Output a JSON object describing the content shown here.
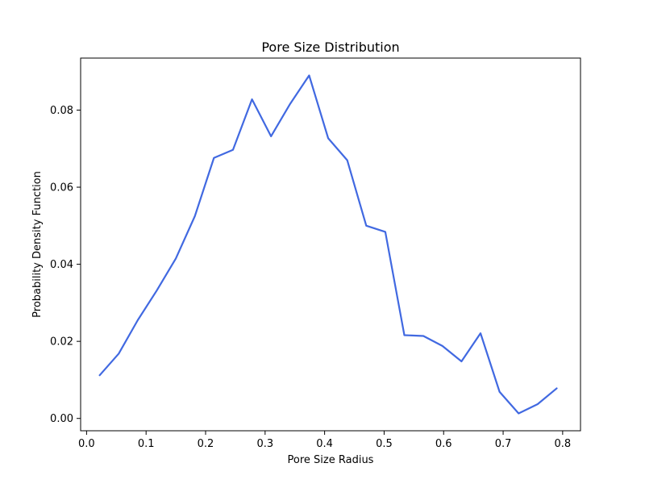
{
  "chart_data": {
    "type": "line",
    "title": "Pore Size Distribution",
    "xlabel": "Pore Size Radius",
    "ylabel": "Probability Density Function",
    "xlim": [
      -0.01,
      0.83
    ],
    "ylim": [
      -0.0032,
      0.0935
    ],
    "grid": false,
    "line_color": "#4169E1",
    "x_ticks": [
      0.0,
      0.1,
      0.2,
      0.3,
      0.4,
      0.5,
      0.6,
      0.7,
      0.8
    ],
    "x_tick_labels": [
      "0.0",
      "0.1",
      "0.2",
      "0.3",
      "0.4",
      "0.5",
      "0.6",
      "0.7",
      "0.8"
    ],
    "y_ticks": [
      0.0,
      0.02,
      0.04,
      0.06,
      0.08
    ],
    "y_tick_labels": [
      "0.00",
      "0.02",
      "0.04",
      "0.06",
      "0.08"
    ],
    "series": [
      {
        "x": [
          0.022,
          0.054,
          0.086,
          0.118,
          0.15,
          0.182,
          0.214,
          0.246,
          0.278,
          0.31,
          0.342,
          0.374,
          0.406,
          0.438,
          0.47,
          0.502,
          0.534,
          0.566,
          0.598,
          0.63,
          0.662,
          0.694,
          0.726,
          0.758,
          0.79
        ],
        "y": [
          0.0112,
          0.0168,
          0.0255,
          0.0332,
          0.0415,
          0.0525,
          0.0676,
          0.0697,
          0.0828,
          0.0732,
          0.0816,
          0.089,
          0.0727,
          0.067,
          0.05,
          0.0484,
          0.0216,
          0.0214,
          0.0188,
          0.0148,
          0.0221,
          0.0069,
          0.0013,
          0.0037,
          0.0078
        ]
      }
    ]
  }
}
